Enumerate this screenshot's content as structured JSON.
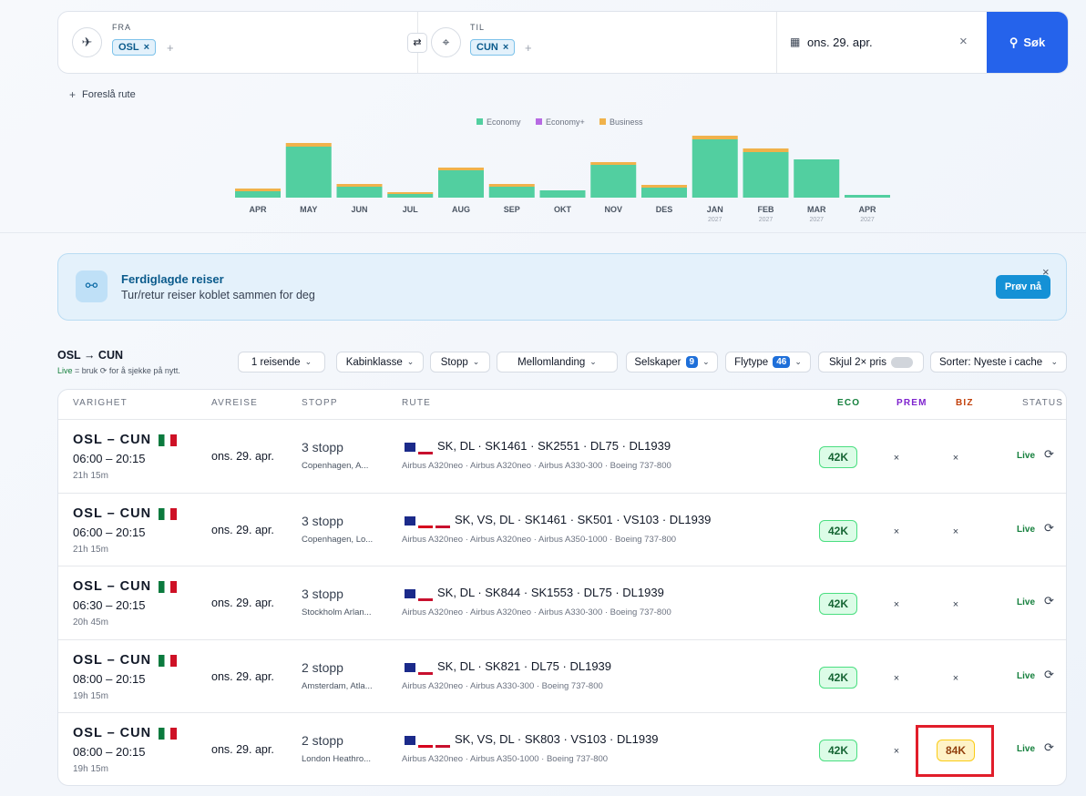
{
  "search": {
    "from_label": "FRA",
    "from_code": "OSL",
    "to_label": "TIL",
    "to_code": "CUN",
    "date": "ons. 29. apr.",
    "button": "Søk",
    "suggest": "Foreslå rute"
  },
  "chart_data": {
    "type": "bar",
    "stacked": true,
    "categories": [
      "APR",
      "MAY",
      "JUN",
      "JUL",
      "AUG",
      "SEP",
      "OKT",
      "NOV",
      "DES",
      "JAN",
      "FEB",
      "MAR",
      "APR"
    ],
    "sublabels": [
      null,
      null,
      null,
      null,
      null,
      null,
      null,
      null,
      null,
      "2027",
      "2027",
      "2027",
      "2027"
    ],
    "series": [
      {
        "name": "Economy",
        "color": "#52cfa0",
        "values": [
          7,
          56,
          12,
          4,
          30,
          12,
          8,
          36,
          11,
          64,
          50,
          42,
          3
        ]
      },
      {
        "name": "Economy+",
        "color": "#b76ae3",
        "values": [
          0,
          0,
          0,
          0,
          0,
          0,
          0,
          0,
          0,
          0,
          0,
          0,
          0
        ]
      },
      {
        "name": "Business",
        "color": "#f0b24b",
        "values": [
          3,
          4,
          3,
          2,
          3,
          3,
          0,
          3,
          3,
          4,
          4,
          0,
          0
        ]
      }
    ],
    "ylim": [
      0,
      70
    ]
  },
  "banner": {
    "title": "Ferdiglagde reiser",
    "subtitle": "Tur/retur reiser koblet sammen for deg",
    "button": "Prøv nå"
  },
  "results": {
    "route": "OSL → CUN",
    "hint_live": "Live",
    "hint_text": "= bruk ⟳ for å sjekke på nytt.",
    "filters": [
      {
        "label": "1 reisende"
      },
      {
        "label": "Kabinklasse"
      },
      {
        "label": "Stopp"
      },
      {
        "label": "Mellomlanding"
      },
      {
        "label": "Selskaper",
        "badge": "9"
      },
      {
        "label": "Flytype",
        "badge": "46"
      },
      {
        "label": "Skjul 2× pris"
      },
      {
        "label": "Sorter: Nyeste i cache"
      }
    ]
  },
  "table": {
    "headers": [
      "VARIGHET",
      "AVREISE",
      "STOPP",
      "RUTE",
      "ECO",
      "PREM",
      "BIZ",
      "STATUS"
    ],
    "rows": [
      {
        "route": "OSL – CUN",
        "times": "06:00 – 20:15",
        "duration": "21h 15m",
        "date": "ons. 29. apr.",
        "stops": "3 stopp",
        "via": "Copenhagen, A...",
        "airlines": "SK, DL · SK1461 · SK2551 · DL75 · DL1939",
        "aircraft": "Airbus A320neo · Airbus A320neo · Airbus A330-300 · Boeing 737-800",
        "eco": "42K",
        "prem": "×",
        "biz": "×",
        "status": "Live"
      },
      {
        "route": "OSL – CUN",
        "times": "06:00 – 20:15",
        "duration": "21h 15m",
        "date": "ons. 29. apr.",
        "stops": "3 stopp",
        "via": "Copenhagen, Lo...",
        "airlines": "SK, VS, DL · SK1461 · SK501 · VS103 · DL1939",
        "aircraft": "Airbus A320neo · Airbus A320neo · Airbus A350-1000 · Boeing 737-800",
        "eco": "42K",
        "prem": "×",
        "biz": "×",
        "status": "Live"
      },
      {
        "route": "OSL – CUN",
        "times": "06:30 – 20:15",
        "duration": "20h 45m",
        "date": "ons. 29. apr.",
        "stops": "3 stopp",
        "via": "Stockholm Arlan...",
        "airlines": "SK, DL · SK844 · SK1553 · DL75 · DL1939",
        "aircraft": "Airbus A320neo · Airbus A320neo · Airbus A330-300 · Boeing 737-800",
        "eco": "42K",
        "prem": "×",
        "biz": "×",
        "status": "Live"
      },
      {
        "route": "OSL – CUN",
        "times": "08:00 – 20:15",
        "duration": "19h 15m",
        "date": "ons. 29. apr.",
        "stops": "2 stopp",
        "via": "Amsterdam, Atla...",
        "airlines": "SK, DL · SK821 · DL75 · DL1939",
        "aircraft": "Airbus A320neo · Airbus A330-300 · Boeing 737-800",
        "eco": "42K",
        "prem": "×",
        "biz": "×",
        "status": "Live"
      },
      {
        "route": "OSL – CUN",
        "times": "08:00 – 20:15",
        "duration": "19h 15m",
        "date": "ons. 29. apr.",
        "stops": "2 stopp",
        "via": "London Heathro...",
        "airlines": "SK, VS, DL · SK803 · VS103 · DL1939",
        "aircraft": "Airbus A320neo · Airbus A350-1000 · Boeing 737-800",
        "eco": "42K",
        "prem": "×",
        "biz": "84K",
        "status": "Live"
      }
    ]
  }
}
